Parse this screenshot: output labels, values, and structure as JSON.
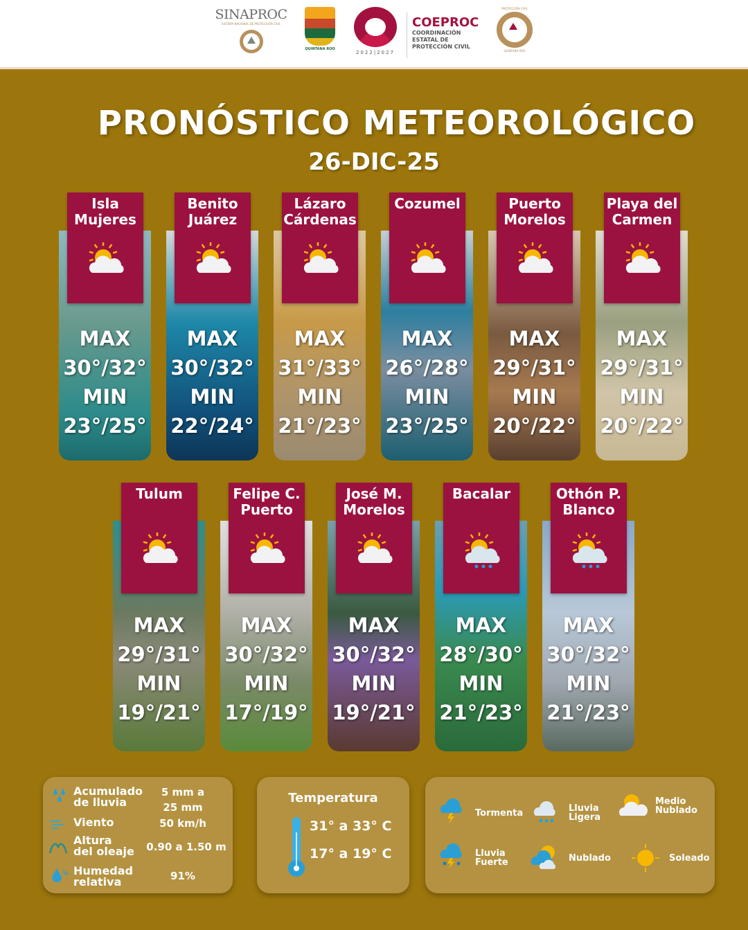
{
  "header": {
    "logos": {
      "sinaproc": "SINAPROC",
      "sinaproc_sub": "SISTEMA NACIONAL DE PROTECCIÓN CIVIL",
      "quintana_roo": "QUINTANA ROO",
      "gobierno_years": "2022|2027",
      "coeproc": "COEPROC",
      "coeproc_sub": [
        "COORDINACIÓN",
        "ESTATAL DE",
        "PROTECCIÓN CIVIL"
      ],
      "pc_top": "PROTECCIÓN CIVIL",
      "pc_bottom": "QUINTANA ROO"
    }
  },
  "title": "PRONÓSTICO METEOROLÓGICO",
  "date": "26-DIC-25",
  "colors": {
    "background": "#9c760c",
    "label": "#9b1240",
    "accent": "#a3123f"
  },
  "municipios": [
    {
      "name": "Isla\nMujeres",
      "icon": "sun-cloud",
      "max_label": "MAX",
      "max": "30°/32°",
      "min_label": "MIN",
      "min": "23°/25°"
    },
    {
      "name": "Benito\nJuárez",
      "icon": "sun-cloud",
      "max_label": "MAX",
      "max": "30°/32°",
      "min_label": "MIN",
      "min": "22°/24°"
    },
    {
      "name": "Lázaro\nCárdenas",
      "icon": "sun-cloud",
      "max_label": "MAX",
      "max": "31°/33°",
      "min_label": "MIN",
      "min": "21°/23°"
    },
    {
      "name": "Cozumel",
      "icon": "sun-cloud",
      "max_label": "MAX",
      "max": "26°/28°",
      "min_label": "MIN",
      "min": "23°/25°"
    },
    {
      "name": "Puerto\nMorelos",
      "icon": "sun-cloud",
      "max_label": "MAX",
      "max": "29°/31°",
      "min_label": "MIN",
      "min": "20°/22°"
    },
    {
      "name": "Playa del\nCarmen",
      "icon": "sun-cloud",
      "max_label": "MAX",
      "max": "29°/31°",
      "min_label": "MIN",
      "min": "20°/22°"
    },
    {
      "name": "Tulum",
      "icon": "sun-cloud",
      "max_label": "MAX",
      "max": "29°/31°",
      "min_label": "MIN",
      "min": "19°/21°"
    },
    {
      "name": "Felipe C.\nPuerto",
      "icon": "sun-cloud",
      "max_label": "MAX",
      "max": "30°/32°",
      "min_label": "MIN",
      "min": "17°/19°"
    },
    {
      "name": "José M.\nMorelos",
      "icon": "sun-cloud",
      "max_label": "MAX",
      "max": "30°/32°",
      "min_label": "MIN",
      "min": "19°/21°"
    },
    {
      "name": "Bacalar",
      "icon": "sun-cloud-rain",
      "max_label": "MAX",
      "max": "28°/30°",
      "min_label": "MIN",
      "min": "21°/23°"
    },
    {
      "name": "Othón P.\nBlanco",
      "icon": "sun-cloud-rain",
      "max_label": "MAX",
      "max": "30°/32°",
      "min_label": "MIN",
      "min": "21°/23°"
    }
  ],
  "summary": {
    "rain_label": "Acumulado\nde lluvia",
    "rain_value": "5 mm a\n25 mm",
    "wind_label": "Viento",
    "wind_value": "50 km/h",
    "wave_label": "Altura\ndel oleaje",
    "wave_value": "0.90 a 1.50 m",
    "humidity_label": "Humedad\nrelativa",
    "humidity_value": "91%"
  },
  "temperature": {
    "title": "Temperatura",
    "max": "31° a 33° C",
    "min": "17° a 19° C"
  },
  "legend": [
    {
      "label": "Tormenta",
      "icon": "storm"
    },
    {
      "label": "Lluvia\nLigera",
      "icon": "light-rain"
    },
    {
      "label": "Medio\nNublado",
      "icon": "partly-cloudy"
    },
    {
      "label": "Lluvia\nFuerte",
      "icon": "heavy-rain"
    },
    {
      "label": "Nublado",
      "icon": "cloudy"
    },
    {
      "label": "Soleado",
      "icon": "sunny"
    }
  ]
}
